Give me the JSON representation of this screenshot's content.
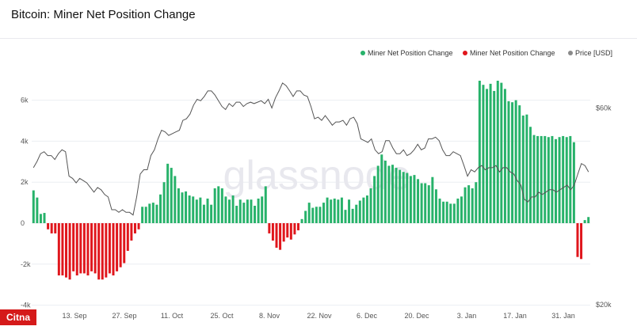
{
  "title": "Bitcoin: Miner Net Position Change",
  "logo_text": "Citna",
  "watermark": "glassnode",
  "colors": {
    "positive": "#27b26a",
    "negative": "#e0161c",
    "price_line": "#8a8a8a",
    "grid": "#eceef2",
    "axis_text": "#555555"
  },
  "chart_data": {
    "type": "bar",
    "title": "Bitcoin: Miner Net Position Change",
    "legend": {
      "placement": "top-right",
      "entries": [
        {
          "name": "Miner Net Position Change",
          "color": "#27b26a",
          "marker": "dot"
        },
        {
          "name": "Miner Net Position Change",
          "color": "#e0161c",
          "marker": "dot"
        },
        {
          "name": "Price [USD]",
          "color": "#8a8a8a",
          "marker": "dot"
        }
      ]
    },
    "x_ticks": [
      "13. Sep",
      "27. Sep",
      "11. Oct",
      "25. Oct",
      "8. Nov",
      "22. Nov",
      "6. Dec",
      "20. Dec",
      "3. Jan",
      "17. Jan",
      "31. Jan"
    ],
    "y_left": {
      "ticks": [
        "6k",
        "4k",
        "2k",
        "0",
        "-2k",
        "-4k"
      ],
      "range": [
        -4000,
        7500
      ]
    },
    "y_right": {
      "ticks": [
        "$60k",
        "$20k"
      ],
      "range": [
        20000,
        70000
      ],
      "scale": "log"
    },
    "grid": true,
    "first_day": "2021-09-03",
    "bars": [
      1600,
      1250,
      450,
      500,
      -300,
      -500,
      -500,
      -2550,
      -2550,
      -2650,
      -2750,
      -2350,
      -2550,
      -2450,
      -2450,
      -2550,
      -2350,
      -2450,
      -2750,
      -2750,
      -2650,
      -2450,
      -2550,
      -2350,
      -2150,
      -1950,
      -1350,
      -850,
      -500,
      -300,
      800,
      800,
      950,
      1000,
      900,
      1400,
      2000,
      2900,
      2700,
      2300,
      1700,
      1500,
      1550,
      1350,
      1300,
      1150,
      1250,
      900,
      1200,
      900,
      1700,
      1800,
      1700,
      1300,
      1150,
      1350,
      850,
      1150,
      1000,
      1150,
      1150,
      850,
      1200,
      1300,
      1800,
      -500,
      -850,
      -1200,
      -1300,
      -900,
      -700,
      -800,
      -550,
      -350,
      200,
      600,
      1000,
      750,
      800,
      800,
      1000,
      1250,
      1150,
      1200,
      1150,
      1250,
      650,
      1150,
      700,
      900,
      1100,
      1250,
      1350,
      1700,
      2300,
      2800,
      3350,
      3050,
      2800,
      2850,
      2700,
      2600,
      2500,
      2450,
      2300,
      2350,
      2150,
      1950,
      1950,
      1850,
      2250,
      1650,
      1200,
      1050,
      1050,
      950,
      950,
      1200,
      1300,
      1750,
      1850,
      1700,
      2000,
      6950,
      6750,
      6550,
      6800,
      6450,
      6950,
      6850,
      6550,
      5950,
      5900,
      6000,
      5750,
      5250,
      5300,
      4700,
      4300,
      4250,
      4250,
      4250,
      4200,
      4250,
      4100,
      4200,
      4250,
      4200,
      4250,
      3950,
      -1650,
      -1750,
      150,
      300
    ],
    "price": [
      43000,
      44500,
      46500,
      47000,
      46000,
      46000,
      45000,
      46500,
      47500,
      47000,
      41000,
      40500,
      39500,
      40500,
      40000,
      39500,
      38500,
      37500,
      38500,
      38000,
      37000,
      36500,
      34000,
      34000,
      33500,
      34000,
      33500,
      33500,
      33000,
      36500,
      41500,
      42500,
      42500,
      46000,
      47500,
      50500,
      53000,
      52500,
      51500,
      52000,
      52500,
      53000,
      56000,
      56500,
      58000,
      61000,
      63000,
      62500,
      64000,
      66000,
      66000,
      64500,
      62500,
      60500,
      59500,
      61500,
      60500,
      62000,
      62000,
      60500,
      61500,
      62000,
      61500,
      62000,
      62500,
      61500,
      63000,
      60000,
      63500,
      66000,
      69000,
      68000,
      66000,
      64000,
      66000,
      66000,
      64500,
      64000,
      60500,
      56500,
      57000,
      56000,
      57500,
      56000,
      54500,
      55500,
      55500,
      56000,
      54500,
      56500,
      57000,
      55000,
      50500,
      50000,
      49500,
      50500,
      47500,
      46500,
      47000,
      50000,
      50000,
      48000,
      46500,
      46500,
      47500,
      46000,
      46500,
      47500,
      49000,
      47500,
      48000,
      50500,
      50500,
      51000,
      50000,
      47500,
      46000,
      46000,
      47000,
      46500,
      46000,
      43500,
      41000,
      42500,
      42000,
      43000,
      43500,
      42500,
      43000,
      43000,
      43500,
      42000,
      43000,
      43000,
      42000,
      41500,
      40000,
      39000,
      36000,
      35500,
      36500,
      36500,
      37500,
      37000,
      37500,
      38000,
      38000,
      37500,
      38000,
      38500,
      39000,
      38000,
      39000,
      41500,
      44000,
      43500,
      42000
    ]
  }
}
